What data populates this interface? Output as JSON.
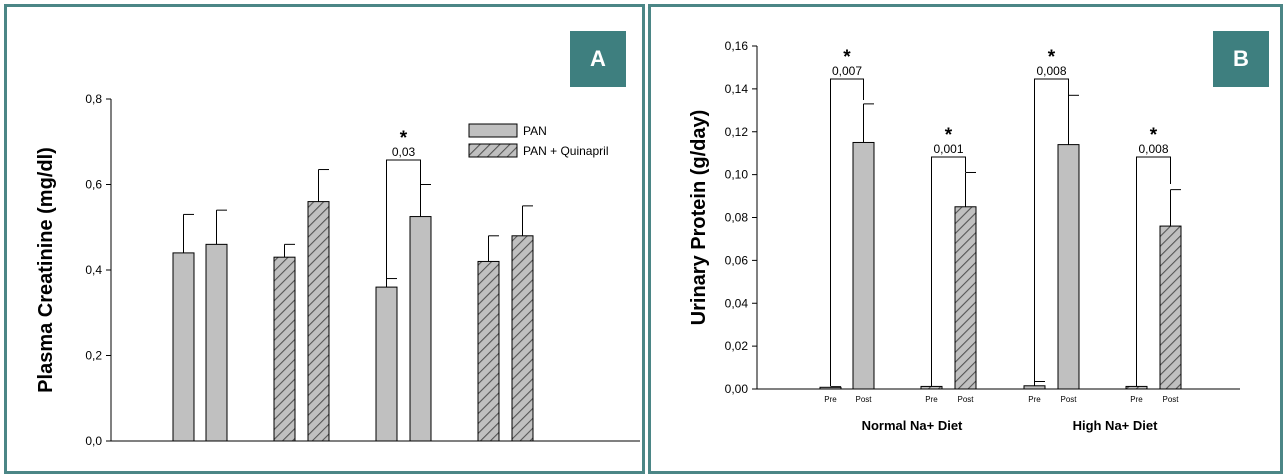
{
  "panels": {
    "a": {
      "letter": "A"
    },
    "b": {
      "letter": "B"
    }
  },
  "colors": {
    "frame": "#4b8686",
    "badge": "#3e7f7f",
    "bar_fill": "#c0c0c0",
    "hatch": "#555555",
    "axis": "#000000"
  },
  "chart_data": [
    {
      "type": "bar",
      "ylabel": "Plasma Creatinine (mg/dl)",
      "xlabel": "",
      "ylim": [
        0,
        0.8
      ],
      "yticks": [
        "0,0",
        "0,2",
        "0,4",
        "0,6",
        "0,8"
      ],
      "legend": {
        "placement": "top-right",
        "entries": [
          {
            "label": "PAN",
            "pattern": "solid"
          },
          {
            "label": "PAN + Quinapril",
            "pattern": "hatched"
          }
        ]
      },
      "bars": [
        {
          "series": "PAN",
          "value": 0.44,
          "error": 0.09
        },
        {
          "series": "PAN",
          "value": 0.46,
          "error": 0.08
        },
        {
          "series": "PAN + Quinapril",
          "value": 0.43,
          "error": 0.03
        },
        {
          "series": "PAN + Quinapril",
          "value": 0.56,
          "error": 0.075
        },
        {
          "series": "PAN",
          "value": 0.36,
          "error": 0.02
        },
        {
          "series": "PAN",
          "value": 0.525,
          "error": 0.075
        },
        {
          "series": "PAN + Quinapril",
          "value": 0.42,
          "error": 0.06
        },
        {
          "series": "PAN + Quinapril",
          "value": 0.48,
          "error": 0.07
        }
      ],
      "annotations": [
        {
          "between_bars": [
            4,
            5
          ],
          "star": "*",
          "p_value": "0,03"
        }
      ]
    },
    {
      "type": "bar",
      "ylabel": "Urinary Protein (g/day)",
      "ylim": [
        0,
        0.16
      ],
      "yticks": [
        "0,00",
        "0,02",
        "0,04",
        "0,06",
        "0,08",
        "0,10",
        "0,12",
        "0,14",
        "0,16"
      ],
      "groups": [
        "Normal Na+ Diet",
        "High Na+ Diet"
      ],
      "bars": [
        {
          "label": "Pre",
          "value": 0.0008,
          "error": 0.0003,
          "pattern": "solid"
        },
        {
          "label": "Post",
          "value": 0.115,
          "error": 0.018,
          "pattern": "solid"
        },
        {
          "label": "Pre",
          "value": 0.0012,
          "error": 0.0,
          "pattern": "hatched"
        },
        {
          "label": "Post",
          "value": 0.085,
          "error": 0.016,
          "pattern": "hatched"
        },
        {
          "label": "Pre",
          "value": 0.0015,
          "error": 0.002,
          "pattern": "solid"
        },
        {
          "label": "Post",
          "value": 0.114,
          "error": 0.023,
          "pattern": "solid"
        },
        {
          "label": "Pre",
          "value": 0.0012,
          "error": 0.0,
          "pattern": "hatched"
        },
        {
          "label": "Post",
          "value": 0.076,
          "error": 0.017,
          "pattern": "hatched"
        }
      ],
      "annotations": [
        {
          "between_bars": [
            0,
            1
          ],
          "star": "*",
          "p_value": "0,007"
        },
        {
          "between_bars": [
            2,
            3
          ],
          "star": "*",
          "p_value": "0,001"
        },
        {
          "between_bars": [
            4,
            5
          ],
          "star": "*",
          "p_value": "0,008"
        },
        {
          "between_bars": [
            6,
            7
          ],
          "star": "*",
          "p_value": "0,008"
        }
      ]
    }
  ]
}
